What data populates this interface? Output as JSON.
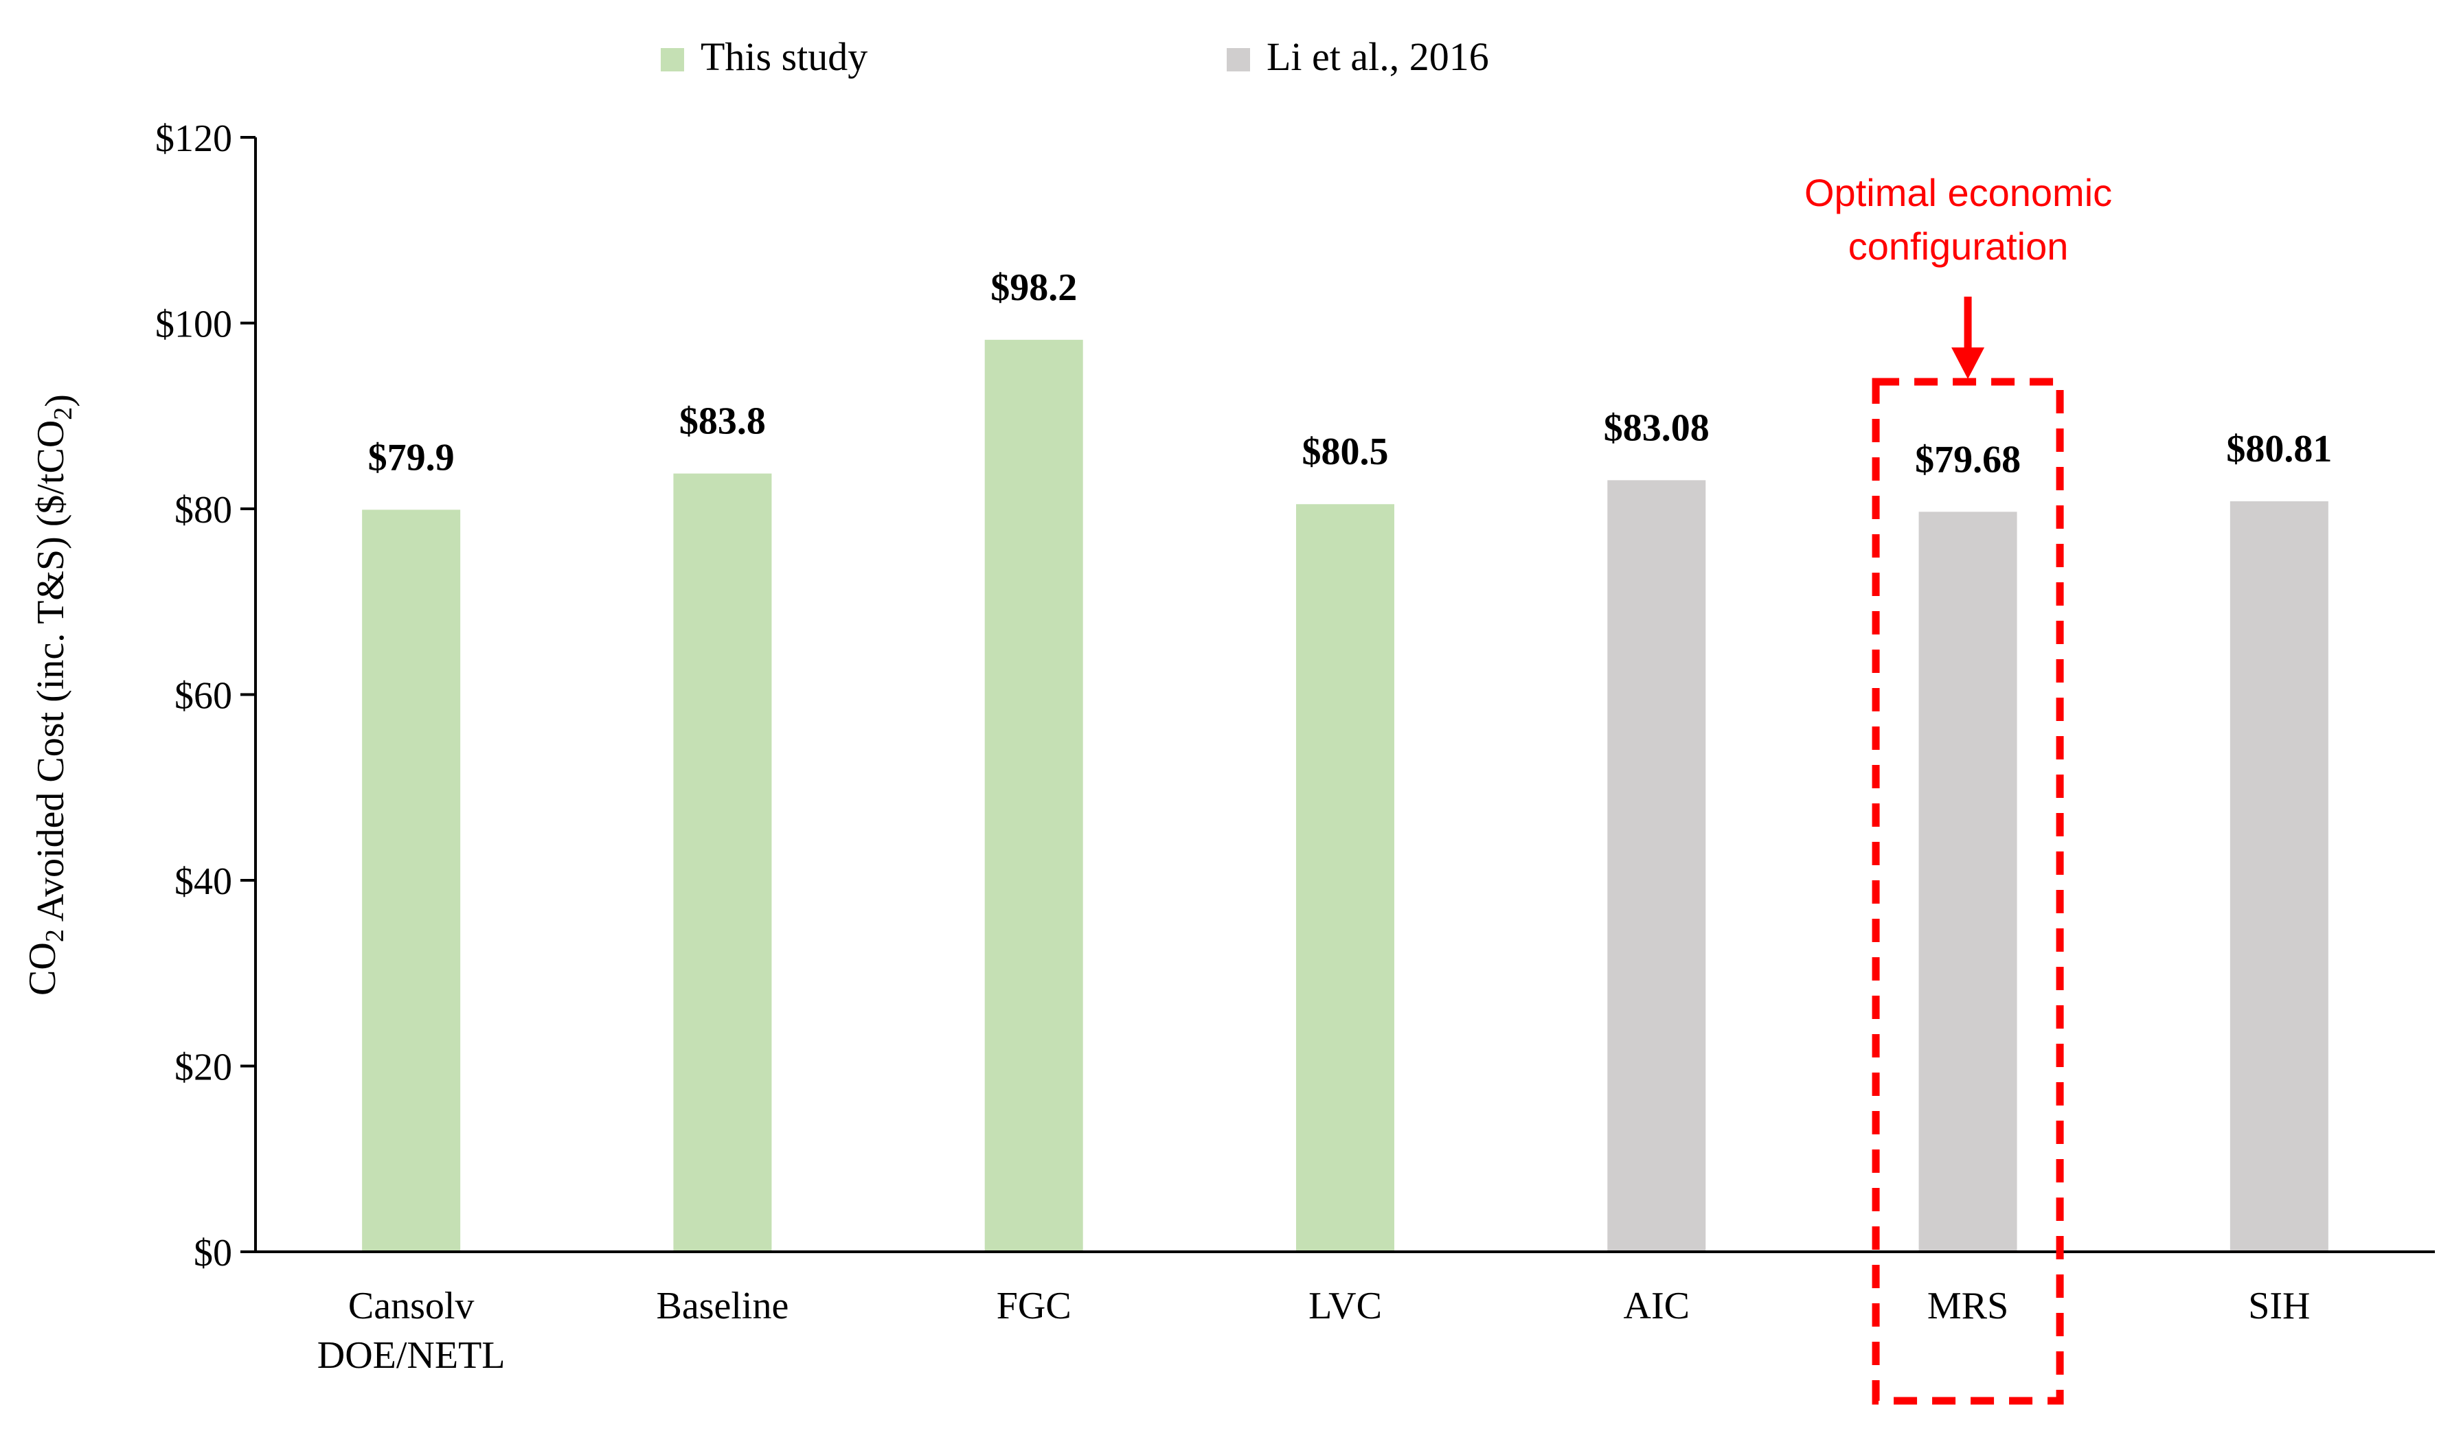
{
  "chart_data": {
    "type": "bar",
    "categories": [
      "Cansolv\nDOE/NETL",
      "Baseline",
      "FGC",
      "LVC",
      "AIC",
      "MRS",
      "SIH"
    ],
    "values": [
      79.9,
      83.8,
      98.2,
      80.5,
      83.08,
      79.68,
      80.81
    ],
    "value_labels": [
      "$79.9",
      "$83.8",
      "$98.2",
      "$80.5",
      "$83.08",
      "$79.68",
      "$80.81"
    ],
    "series_of_bar": [
      "This study",
      "This study",
      "This study",
      "This study",
      "Li et al., 2016",
      "Li et al., 2016",
      "Li et al., 2016"
    ],
    "series": [
      {
        "name": "This study",
        "color": "#c5e0b4"
      },
      {
        "name": "Li et al., 2016",
        "color": "#d0cece"
      }
    ],
    "ylabel": "CO2 Avoided Cost (inc. T&S)  ($/tCO2)",
    "ylim": [
      0,
      120
    ],
    "yticks": [
      0,
      20,
      40,
      60,
      80,
      100,
      120
    ],
    "ytick_labels": [
      "$0",
      "$20",
      "$40",
      "$60",
      "$80",
      "$100",
      "$120"
    ],
    "legend_position": "top",
    "grid": false,
    "annotation": {
      "text_line1": "Optimal economic",
      "text_line2": "configuration",
      "highlight_category": "MRS",
      "color": "#ff0000"
    }
  }
}
